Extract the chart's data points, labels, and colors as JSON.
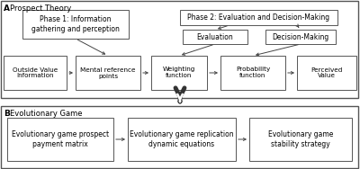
{
  "fig_width": 4.0,
  "fig_height": 1.88,
  "dpi": 100,
  "bg_color": "#ffffff",
  "box_fc": "#ffffff",
  "box_ec": "#555555",
  "section_A_label": "A",
  "section_B_label": "B",
  "prospect_theory_label": "Prospect Theory",
  "evolutionary_game_label": "Evolutionary Game",
  "phase1_text": "Phase 1: Information\ngathering and perception",
  "phase2_text": "Phase 2: Evaluation and Decision-Making",
  "eval_text": "Evaluation",
  "decision_text": "Decision-Making",
  "outside_text": "Outside Value\nInformation",
  "mental_text": "Mental reference\npoints",
  "weighting_text": "Weighting\nfunction",
  "probability_text": "Probability\nfunction",
  "perceived_text": "Perceived\nValue",
  "evo1_text": "Evolutionary game prospect\npayment matrix",
  "evo2_text": "Evolutionary game replication\ndynamic equations",
  "evo3_text": "Evolutionary game\nstability strategy",
  "arrow_ec": "#444444",
  "big_arrow_ec": "#333333"
}
